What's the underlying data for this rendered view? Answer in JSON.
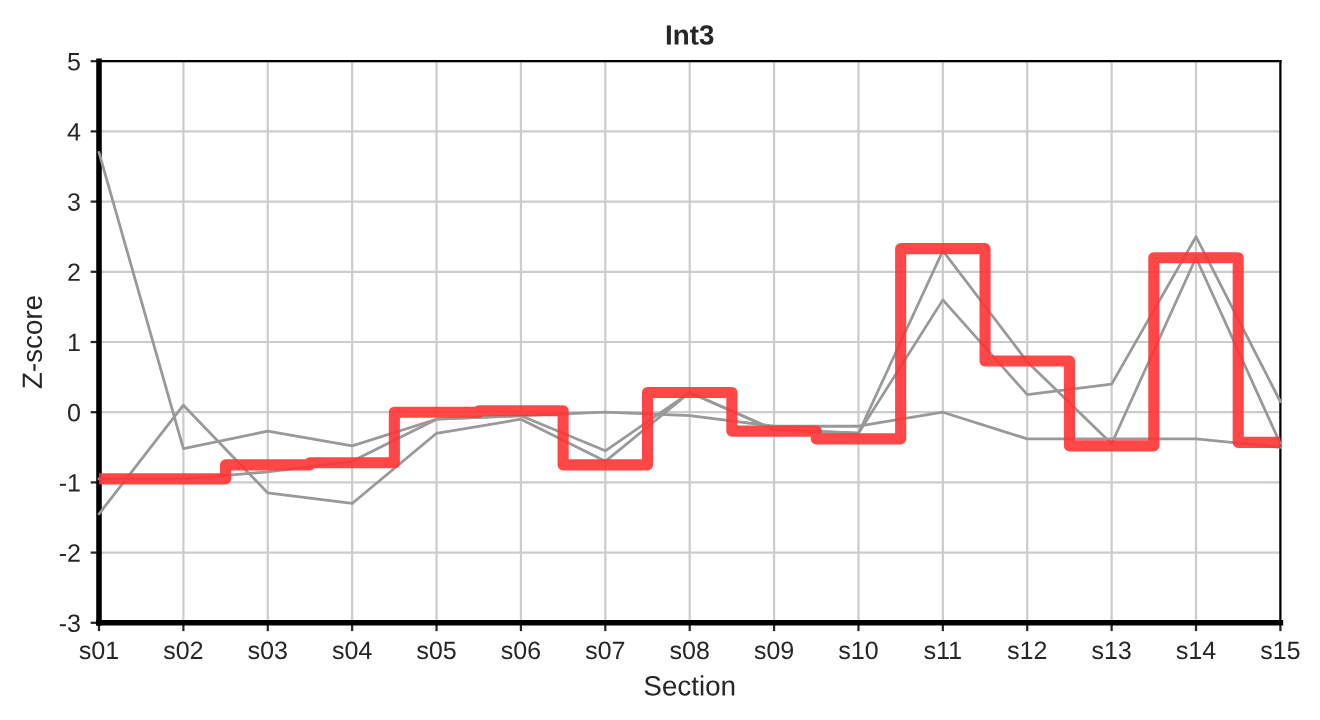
{
  "chart_data": {
    "type": "line",
    "title": "Int3",
    "xlabel": "Section",
    "ylabel": "Z-score",
    "categories": [
      "s01",
      "s02",
      "s03",
      "s04",
      "s05",
      "s06",
      "s07",
      "s08",
      "s09",
      "s10",
      "s11",
      "s12",
      "s13",
      "s14",
      "s15"
    ],
    "series": [
      {
        "color": "#999999",
        "values": [
          3.7,
          -0.52,
          -0.27,
          -0.48,
          -0.1,
          -0.05,
          -0.55,
          0.28,
          -0.25,
          -0.3,
          1.6,
          0.25,
          0.4,
          2.5,
          0.15
        ]
      },
      {
        "color": "#999999",
        "values": [
          -1.45,
          0.1,
          -1.15,
          -1.3,
          -0.3,
          -0.1,
          -0.7,
          0.28,
          -0.25,
          -0.3,
          2.3,
          0.72,
          -0.45,
          2.2,
          -0.45
        ]
      },
      {
        "color": "#999999",
        "values": [
          -0.95,
          -0.95,
          -0.85,
          -0.7,
          -0.1,
          -0.05,
          0.0,
          -0.05,
          -0.2,
          -0.2,
          0.0,
          -0.38,
          -0.38,
          -0.38,
          -0.5
        ]
      },
      {
        "type": "step",
        "color": "#ff3333",
        "values": [
          -0.95,
          -0.95,
          -0.75,
          -0.72,
          0.0,
          0.02,
          -0.75,
          0.28,
          -0.27,
          -0.38,
          2.33,
          0.73,
          -0.48,
          2.2,
          -0.43
        ]
      }
    ],
    "ylim": [
      -3,
      5
    ],
    "yticks": [
      -3,
      -2,
      -1,
      0,
      1,
      2,
      3,
      4,
      5
    ],
    "grid": true,
    "marker": "none"
  }
}
